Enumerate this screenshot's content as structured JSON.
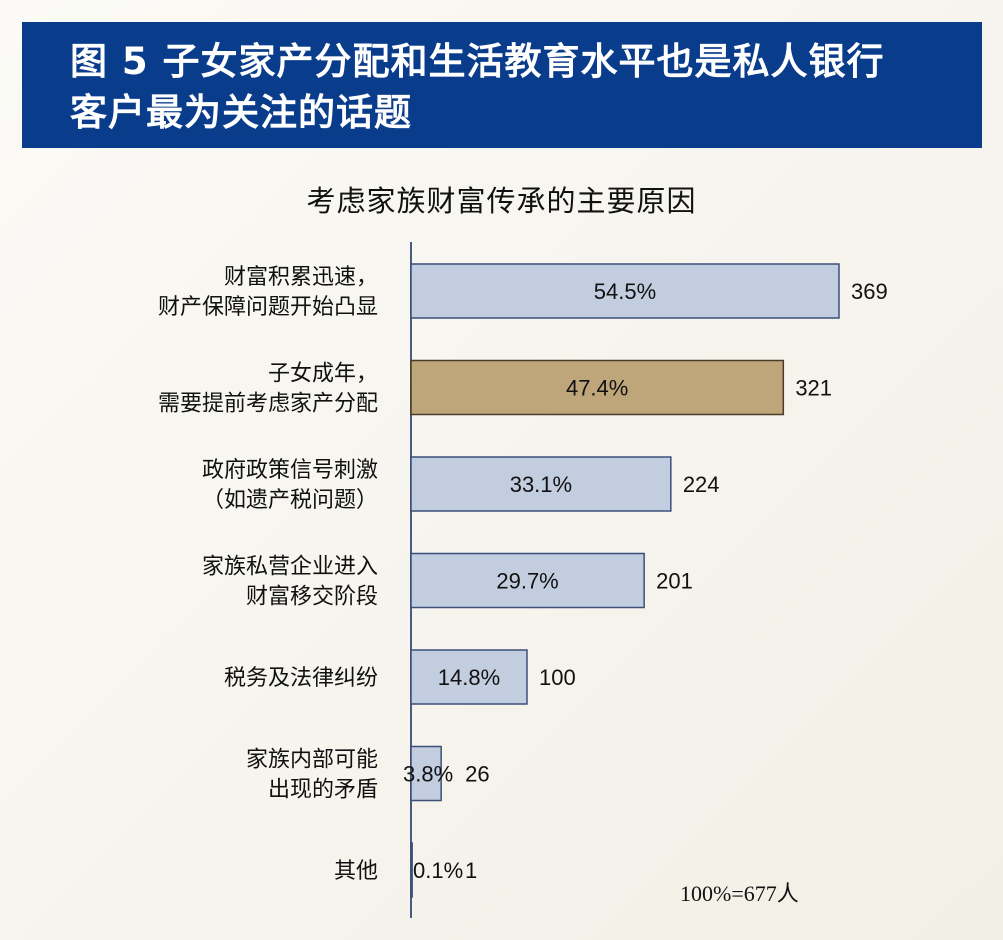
{
  "title": {
    "text": "图 5 子女家产分配和生活教育水平也是私人银行\n客户最为关注的话题"
  },
  "chart_data": {
    "type": "bar",
    "orientation": "horizontal",
    "title": "考虑家族财富传承的主要原因",
    "categories": [
      "财富积累迅速，\n财产保障问题开始凸显",
      "子女成年，\n需要提前考虑家产分配",
      "政府政策信号刺激\n（如遗产税问题）",
      "家族私营企业进入\n财富移交阶段",
      "税务及法律纠纷",
      "家族内部可能\n出现的矛盾",
      "其他"
    ],
    "values": [
      369,
      321,
      224,
      201,
      100,
      26,
      1
    ],
    "percent_labels": [
      "54.5%",
      "47.4%",
      "33.1%",
      "29.7%",
      "14.8%",
      "3.8%",
      "0.1%"
    ],
    "value_labels": [
      "369",
      "321",
      "224",
      "201",
      "100",
      "26",
      "1"
    ],
    "highlight_index": 1,
    "colors": {
      "bar": "#c3cde0",
      "bar_border": "#3b4f7a",
      "highlight": "#bfa57a",
      "highlight_border": "#4a3c28",
      "axis": "#4a5b80"
    },
    "note": "100%=677人"
  }
}
